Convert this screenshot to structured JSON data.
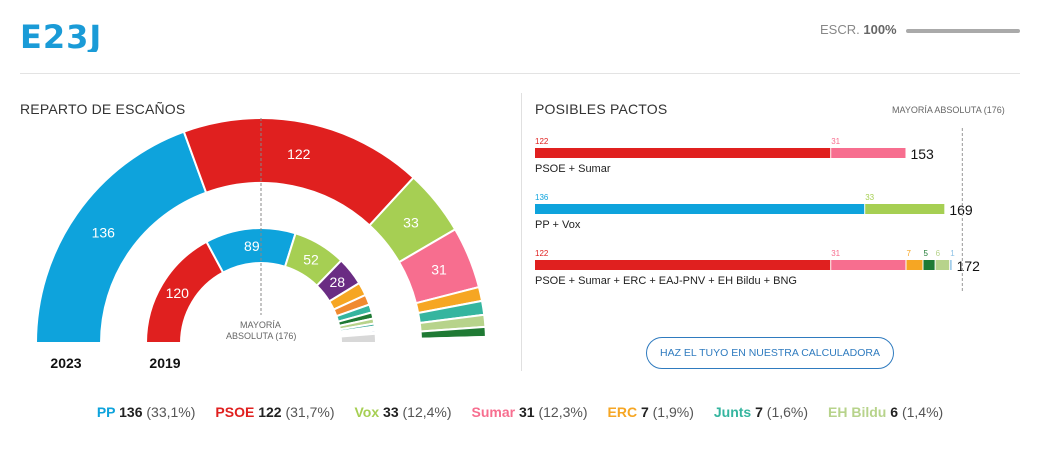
{
  "header": {
    "logo_text": "E23J",
    "escr_label": "ESCR.",
    "escr_value": "100%",
    "escr_fraction": 1.0
  },
  "left_panel": {
    "title": "REPARTO DE ESCAÑOS",
    "majority_line1": "MAYORÍA",
    "majority_line2": "ABSOLUTA (176)"
  },
  "right_panel": {
    "title": "POSIBLES PACTOS",
    "majority_label": "MAYORÍA ABSOLUTA (176)",
    "calculator_button": "HAZ EL TUYO EN NUESTRA CALCULADORA"
  },
  "colors": {
    "PP": "#0ea3dc",
    "PSOE": "#e0201f",
    "Vox": "#a6cf53",
    "Sumar": "#f76e8f",
    "ERC": "#f6a623",
    "Junts": "#35b59f",
    "EH Bildu": "#b7d38b",
    "EAJ-PNV": "#1f7a34",
    "BNG": "#8ec2e6",
    "Podemos": "#6a2c83",
    "Cs": "#f08a30",
    "MasPais": "#3aa89a",
    "CUP": "#f2e24a",
    "CC": "#f5d547",
    "UPN": "#1d4f91",
    "Others": "#d8d8d8"
  },
  "chart_data": [
    {
      "type": "pie",
      "subtype": "hemicycle",
      "total_seats": 350,
      "majority": 176,
      "rings": [
        {
          "year": "2023",
          "label": "2023",
          "segments": [
            {
              "party": "PP",
              "seats": 136,
              "show_label": true
            },
            {
              "party": "PSOE",
              "seats": 122,
              "show_label": true
            },
            {
              "party": "Vox",
              "seats": 33,
              "show_label": true
            },
            {
              "party": "Sumar",
              "seats": 31,
              "show_label": true
            },
            {
              "party": "ERC",
              "seats": 7
            },
            {
              "party": "Junts",
              "seats": 7
            },
            {
              "party": "EH Bildu",
              "seats": 6
            },
            {
              "party": "EAJ-PNV",
              "seats": 5
            },
            {
              "party": "BNG",
              "seats": 1
            },
            {
              "party": "CC",
              "seats": 1
            },
            {
              "party": "UPN",
              "seats": 1
            }
          ]
        },
        {
          "year": "2019",
          "label": "2019",
          "segments": [
            {
              "party": "PSOE",
              "seats": 120,
              "show_label": true
            },
            {
              "party": "PP",
              "seats": 89,
              "show_label": true
            },
            {
              "party": "Vox",
              "seats": 52,
              "show_label": true
            },
            {
              "party": "Podemos",
              "seats": 28,
              "show_label": true
            },
            {
              "party": "ERC",
              "seats": 13
            },
            {
              "party": "Cs",
              "seats": 10
            },
            {
              "party": "Junts",
              "seats": 8
            },
            {
              "party": "EAJ-PNV",
              "seats": 6
            },
            {
              "party": "EH Bildu",
              "seats": 5
            },
            {
              "party": "MasPais",
              "seats": 3
            },
            {
              "party": "CUP",
              "seats": 2
            },
            {
              "party": "CC",
              "seats": 2
            },
            {
              "party": "UPN",
              "seats": 2
            },
            {
              "party": "BNG",
              "seats": 1
            },
            {
              "party": "Others",
              "seats": 9
            }
          ]
        }
      ]
    },
    {
      "type": "bar",
      "subtype": "stacked-horizontal",
      "xlim": [
        0,
        178
      ],
      "majority": 176,
      "pacts": [
        {
          "label": "PSOE + Sumar",
          "total": "153",
          "segments": [
            {
              "party": "PSOE",
              "seats": 122,
              "label": "122"
            },
            {
              "party": "Sumar",
              "seats": 31,
              "label": "31"
            }
          ]
        },
        {
          "label": "PP + Vox",
          "total": "169",
          "segments": [
            {
              "party": "PP",
              "seats": 136,
              "label": "136"
            },
            {
              "party": "Vox",
              "seats": 33,
              "label": "33"
            }
          ]
        },
        {
          "label": "PSOE + Sumar + ERC + EAJ-PNV + EH Bildu + BNG",
          "total": "172",
          "segments": [
            {
              "party": "PSOE",
              "seats": 122,
              "label": "122"
            },
            {
              "party": "Sumar",
              "seats": 31,
              "label": "31"
            },
            {
              "party": "ERC",
              "seats": 7,
              "label": "7"
            },
            {
              "party": "EAJ-PNV",
              "seats": 5,
              "label": "5"
            },
            {
              "party": "EH Bildu",
              "seats": 6,
              "label": "6"
            },
            {
              "party": "BNG",
              "seats": 1,
              "label": "1"
            }
          ]
        }
      ]
    }
  ],
  "legend": [
    {
      "party": "PP",
      "name": "PP",
      "seats": "136",
      "pct": "(33,1%)"
    },
    {
      "party": "PSOE",
      "name": "PSOE",
      "seats": "122",
      "pct": "(31,7%)"
    },
    {
      "party": "Vox",
      "name": "Vox",
      "seats": "33",
      "pct": "(12,4%)"
    },
    {
      "party": "Sumar",
      "name": "Sumar",
      "seats": "31",
      "pct": "(12,3%)"
    },
    {
      "party": "ERC",
      "name": "ERC",
      "seats": "7",
      "pct": "(1,9%)"
    },
    {
      "party": "Junts",
      "name": "Junts",
      "seats": "7",
      "pct": "(1,6%)"
    },
    {
      "party": "EH Bildu",
      "name": "EH Bildu",
      "seats": "6",
      "pct": "(1,4%)"
    }
  ]
}
